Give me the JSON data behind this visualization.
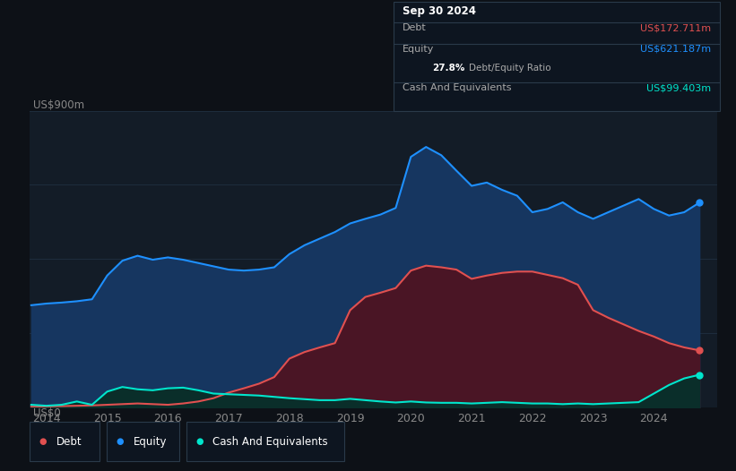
{
  "background_color": "#0d1117",
  "plot_bg_color": "#131c27",
  "ylabel": "US$900m",
  "y0label": "US$0",
  "equity_color": "#1e90ff",
  "debt_color": "#e05050",
  "cash_color": "#00e5cc",
  "equity_fill": "#163660",
  "debt_fill": "#4a1525",
  "cash_fill": "#0a2e2a",
  "grid_color": "#1e2d3d",
  "tick_color": "#888888",
  "ylim_max": 900,
  "tooltip_bg": "#0d1520",
  "tooltip_border": "#2a3a4a",
  "legend_bg": "#0d1520",
  "legend_border": "#2a3a4a",
  "x": [
    2013.75,
    2014.0,
    2014.25,
    2014.5,
    2014.75,
    2015.0,
    2015.25,
    2015.5,
    2015.75,
    2016.0,
    2016.25,
    2016.5,
    2016.75,
    2017.0,
    2017.25,
    2017.5,
    2017.75,
    2018.0,
    2018.25,
    2018.5,
    2018.75,
    2019.0,
    2019.25,
    2019.5,
    2019.75,
    2020.0,
    2020.25,
    2020.5,
    2020.75,
    2021.0,
    2021.25,
    2021.5,
    2021.75,
    2022.0,
    2022.25,
    2022.5,
    2022.75,
    2023.0,
    2023.25,
    2023.5,
    2023.75,
    2024.0,
    2024.25,
    2024.5,
    2024.75
  ],
  "equity": [
    310,
    315,
    318,
    322,
    328,
    400,
    445,
    460,
    448,
    455,
    448,
    438,
    428,
    418,
    415,
    418,
    425,
    465,
    492,
    512,
    532,
    558,
    572,
    585,
    605,
    760,
    790,
    765,
    718,
    672,
    682,
    660,
    642,
    592,
    602,
    622,
    592,
    572,
    592,
    612,
    632,
    602,
    582,
    592,
    621
  ],
  "debt": [
    2,
    3,
    4,
    5,
    6,
    8,
    10,
    12,
    10,
    8,
    12,
    18,
    28,
    45,
    58,
    72,
    92,
    148,
    168,
    182,
    195,
    295,
    335,
    348,
    362,
    415,
    430,
    425,
    418,
    390,
    400,
    408,
    412,
    412,
    402,
    392,
    372,
    295,
    272,
    252,
    232,
    215,
    195,
    182,
    173
  ],
  "cash": [
    8,
    5,
    8,
    18,
    8,
    48,
    62,
    55,
    52,
    58,
    60,
    52,
    42,
    40,
    38,
    36,
    32,
    28,
    25,
    22,
    22,
    26,
    22,
    18,
    15,
    18,
    15,
    14,
    14,
    12,
    14,
    16,
    14,
    12,
    12,
    10,
    12,
    10,
    12,
    14,
    16,
    42,
    68,
    88,
    99
  ]
}
